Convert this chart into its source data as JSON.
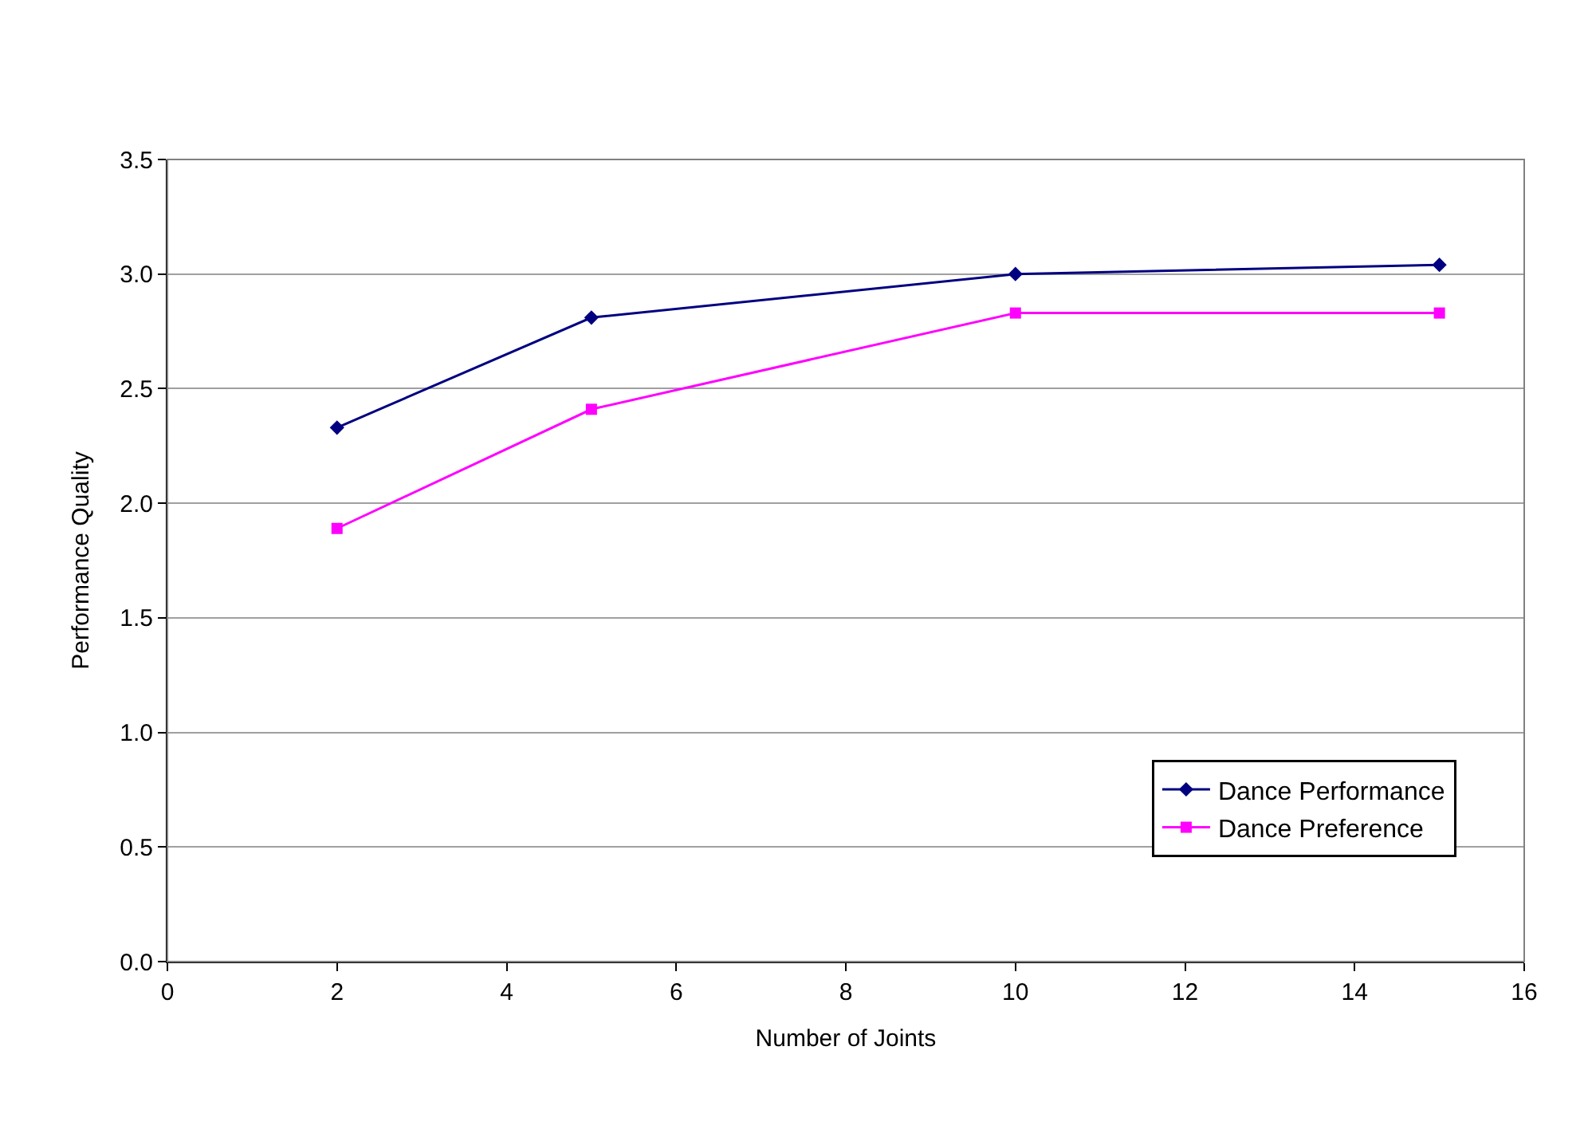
{
  "chart_data": {
    "type": "line",
    "xlabel": "Number of Joints",
    "ylabel": "Performance Quality",
    "x": [
      2,
      5,
      10,
      15
    ],
    "series": [
      {
        "name": "Dance Performance",
        "color": "#000080",
        "marker": "diamond",
        "values": [
          2.33,
          2.81,
          3.0,
          3.04
        ]
      },
      {
        "name": "Dance Preference",
        "color": "#ff00ff",
        "marker": "square",
        "values": [
          1.89,
          2.41,
          2.83,
          2.83
        ]
      }
    ],
    "xlim": [
      0,
      16
    ],
    "xticks": [
      0,
      2,
      4,
      6,
      8,
      10,
      12,
      14,
      16
    ],
    "ylim": [
      0,
      3.5
    ],
    "yticks": [
      {
        "value": 0,
        "label": "0.0"
      },
      {
        "value": 0.5,
        "label": "0.5"
      },
      {
        "value": 1,
        "label": "1.0"
      },
      {
        "value": 1.5,
        "label": "1.5"
      },
      {
        "value": 2,
        "label": "2.0"
      },
      {
        "value": 2.5,
        "label": "2.5"
      },
      {
        "value": 3,
        "label": "3.0"
      },
      {
        "value": 3.5,
        "label": "3.5"
      }
    ],
    "grid": "y",
    "legend": "bottom right",
    "line_style": "solid"
  }
}
